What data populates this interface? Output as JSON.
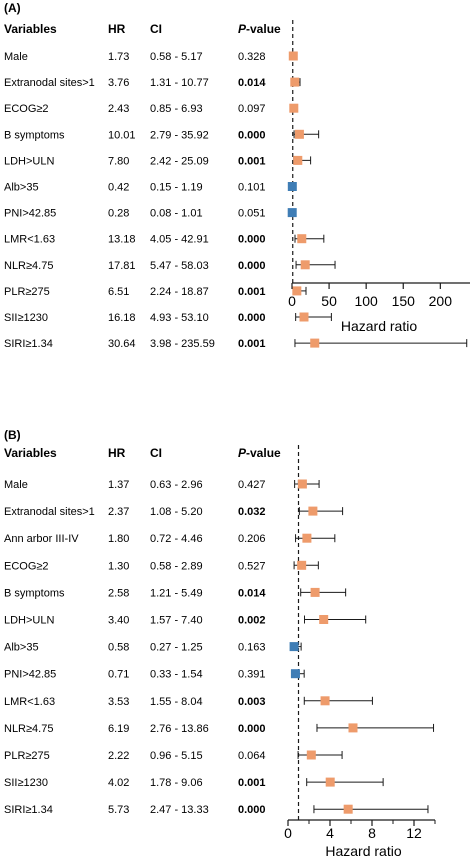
{
  "colors": {
    "hr_gt_1": "#EE9B6B",
    "hr_lt_1": "#3F7DB5",
    "ci_line": "#1a1a1a"
  },
  "chart_data": [
    {
      "type": "forest",
      "panel": "(A)",
      "columns": [
        "Variables",
        "HR",
        "CI",
        "P-value"
      ],
      "xlabel": "Hazard ratio",
      "xlim": [
        0,
        240
      ],
      "xticks": [
        0,
        50,
        100,
        150,
        200
      ],
      "reference_line": 1,
      "rows": [
        {
          "variable": "Male",
          "hr": 1.73,
          "ci_low": 0.58,
          "ci_high": 5.17,
          "hr_text": "1.73",
          "ci_text": "0.58 - 5.17",
          "p_text": "0.328",
          "significant": false
        },
        {
          "variable": "Extranodal sites>1",
          "hr": 3.76,
          "ci_low": 1.31,
          "ci_high": 10.77,
          "hr_text": "3.76",
          "ci_text": "1.31 - 10.77",
          "p_text": "0.014",
          "significant": true
        },
        {
          "variable": "ECOG≥2",
          "hr": 2.43,
          "ci_low": 0.85,
          "ci_high": 6.93,
          "hr_text": "2.43",
          "ci_text": "0.85 - 6.93",
          "p_text": "0.097",
          "significant": false
        },
        {
          "variable": "B symptoms",
          "hr": 10.01,
          "ci_low": 2.79,
          "ci_high": 35.92,
          "hr_text": "10.01",
          "ci_text": "2.79 - 35.92",
          "p_text": "0.000",
          "significant": true
        },
        {
          "variable": "LDH>ULN",
          "hr": 7.8,
          "ci_low": 2.42,
          "ci_high": 25.09,
          "hr_text": "7.80",
          "ci_text": "2.42 - 25.09",
          "p_text": "0.001",
          "significant": true
        },
        {
          "variable": "Alb>35",
          "hr": 0.42,
          "ci_low": 0.15,
          "ci_high": 1.19,
          "hr_text": "0.42",
          "ci_text": "0.15 - 1.19",
          "p_text": "0.101",
          "significant": false
        },
        {
          "variable": "PNI>42.85",
          "hr": 0.28,
          "ci_low": 0.08,
          "ci_high": 1.01,
          "hr_text": "0.28",
          "ci_text": "0.08 - 1.01",
          "p_text": "0.051",
          "significant": false
        },
        {
          "variable": "LMR<1.63",
          "hr": 13.18,
          "ci_low": 4.05,
          "ci_high": 42.91,
          "hr_text": "13.18",
          "ci_text": "4.05 - 42.91",
          "p_text": "0.000",
          "significant": true
        },
        {
          "variable": "NLR≥4.75",
          "hr": 17.81,
          "ci_low": 5.47,
          "ci_high": 58.03,
          "hr_text": "17.81",
          "ci_text": "5.47 - 58.03",
          "p_text": "0.000",
          "significant": true
        },
        {
          "variable": "PLR≥275",
          "hr": 6.51,
          "ci_low": 2.24,
          "ci_high": 18.87,
          "hr_text": "6.51",
          "ci_text": "2.24 - 18.87",
          "p_text": "0.001",
          "significant": true
        },
        {
          "variable": "SII≥1230",
          "hr": 16.18,
          "ci_low": 4.93,
          "ci_high": 53.1,
          "hr_text": "16.18",
          "ci_text": "4.93 - 53.10",
          "p_text": "0.000",
          "significant": true
        },
        {
          "variable": "SIRI≥1.34",
          "hr": 30.64,
          "ci_low": 3.98,
          "ci_high": 235.59,
          "hr_text": "30.64",
          "ci_text": "3.98 - 235.59",
          "p_text": "0.001",
          "significant": true
        }
      ]
    },
    {
      "type": "forest",
      "panel": "(B)",
      "columns": [
        "Variables",
        "HR",
        "CI",
        "P-value"
      ],
      "xlabel": "Hazard ratio",
      "xlim": [
        0,
        14
      ],
      "xticks": [
        0,
        4,
        8,
        12
      ],
      "minor_ticks": [
        2,
        6,
        10,
        14
      ],
      "reference_line": 1,
      "rows": [
        {
          "variable": "Male",
          "hr": 1.37,
          "ci_low": 0.63,
          "ci_high": 2.96,
          "hr_text": "1.37",
          "ci_text": "0.63 - 2.96",
          "p_text": "0.427",
          "significant": false
        },
        {
          "variable": "Extranodal sites>1",
          "hr": 2.37,
          "ci_low": 1.08,
          "ci_high": 5.2,
          "hr_text": "2.37",
          "ci_text": "1.08 - 5.20",
          "p_text": "0.032",
          "significant": true
        },
        {
          "variable": "Ann arbor III-IV",
          "hr": 1.8,
          "ci_low": 0.72,
          "ci_high": 4.46,
          "hr_text": "1.80",
          "ci_text": "0.72 - 4.46",
          "p_text": "0.206",
          "significant": false
        },
        {
          "variable": "ECOG≥2",
          "hr": 1.3,
          "ci_low": 0.58,
          "ci_high": 2.89,
          "hr_text": "1.30",
          "ci_text": "0.58 - 2.89",
          "p_text": "0.527",
          "significant": false
        },
        {
          "variable": "B symptoms",
          "hr": 2.58,
          "ci_low": 1.21,
          "ci_high": 5.49,
          "hr_text": "2.58",
          "ci_text": "1.21 - 5.49",
          "p_text": "0.014",
          "significant": true
        },
        {
          "variable": "LDH>ULN",
          "hr": 3.4,
          "ci_low": 1.57,
          "ci_high": 7.4,
          "hr_text": "3.40",
          "ci_text": "1.57 - 7.40",
          "p_text": "0.002",
          "significant": true
        },
        {
          "variable": "Alb>35",
          "hr": 0.58,
          "ci_low": 0.27,
          "ci_high": 1.25,
          "hr_text": "0.58",
          "ci_text": "0.27 - 1.25",
          "p_text": "0.163",
          "significant": false
        },
        {
          "variable": "PNI>42.85",
          "hr": 0.71,
          "ci_low": 0.33,
          "ci_high": 1.54,
          "hr_text": "0.71",
          "ci_text": "0.33 - 1.54",
          "p_text": "0.391",
          "significant": false
        },
        {
          "variable": "LMR<1.63",
          "hr": 3.53,
          "ci_low": 1.55,
          "ci_high": 8.04,
          "hr_text": "3.53",
          "ci_text": "1.55 - 8.04",
          "p_text": "0.003",
          "significant": true
        },
        {
          "variable": "NLR≥4.75",
          "hr": 6.19,
          "ci_low": 2.76,
          "ci_high": 13.86,
          "hr_text": "6.19",
          "ci_text": "2.76 - 13.86",
          "p_text": "0.000",
          "significant": true
        },
        {
          "variable": "PLR≥275",
          "hr": 2.22,
          "ci_low": 0.96,
          "ci_high": 5.15,
          "hr_text": "2.22",
          "ci_text": "0.96 - 5.15",
          "p_text": "0.064",
          "significant": false
        },
        {
          "variable": "SII≥1230",
          "hr": 4.02,
          "ci_low": 1.78,
          "ci_high": 9.06,
          "hr_text": "4.02",
          "ci_text": "1.78 - 9.06",
          "p_text": "0.001",
          "significant": true
        },
        {
          "variable": "SIRI≥1.34",
          "hr": 5.73,
          "ci_low": 2.47,
          "ci_high": 13.33,
          "hr_text": "5.73",
          "ci_text": "2.47 - 13.33",
          "p_text": "0.000",
          "significant": true
        }
      ]
    }
  ]
}
